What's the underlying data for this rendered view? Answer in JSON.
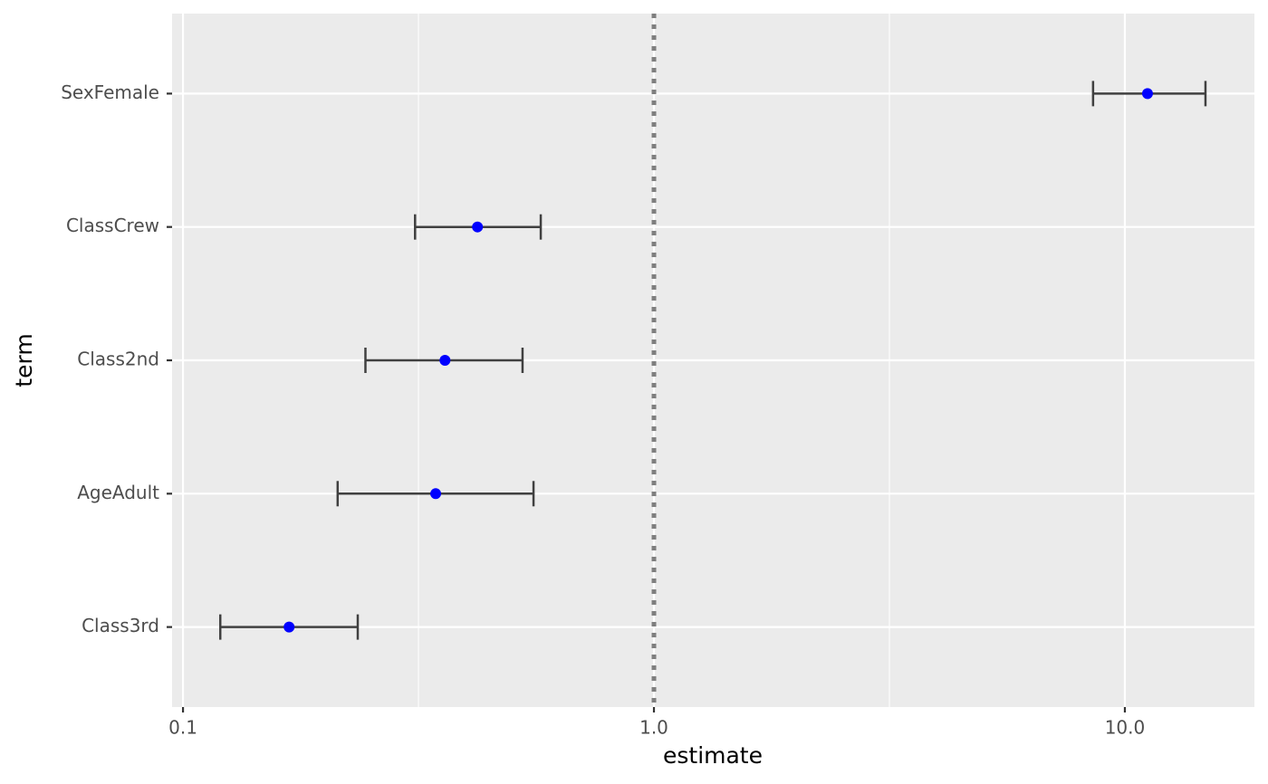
{
  "chart_data": {
    "type": "forest",
    "x_label": "estimate",
    "y_label": "term",
    "categories": [
      "Class3rd",
      "AgeAdult",
      "Class2nd",
      "ClassCrew",
      "SexFemale"
    ],
    "values": [
      0.168,
      0.344,
      0.36,
      0.422,
      11.17
    ],
    "conf_low": [
      0.12,
      0.213,
      0.244,
      0.311,
      8.56
    ],
    "conf_high": [
      0.235,
      0.555,
      0.526,
      0.575,
      14.83
    ],
    "color": "#0000ff",
    "reference_line": 1,
    "x_log": true,
    "xlim": [
      0.0948,
      18.84
    ],
    "xticks": [
      0.1,
      {
        "value": 1,
        "label": "1.0"
      },
      {
        "value": 10,
        "label": "10.0"
      }
    ],
    "grid": true
  }
}
